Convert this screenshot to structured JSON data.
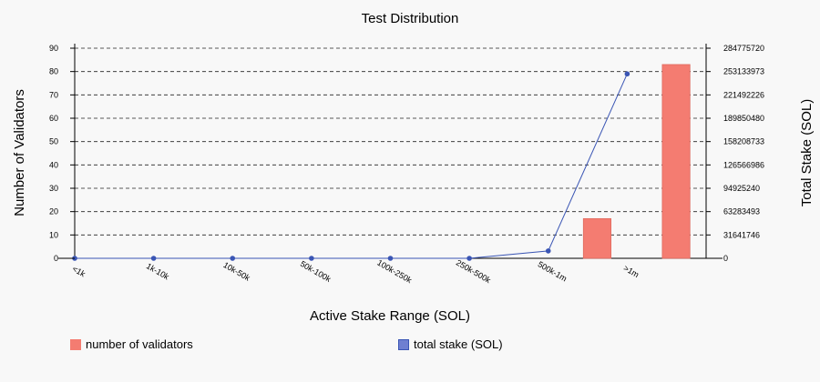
{
  "chart_data": {
    "type": "bar",
    "title": "Test Distribution",
    "xlabel": "Active Stake Range (SOL)",
    "ylabel": "Number of Validators",
    "y2label": "Total Stake (SOL)",
    "categories": [
      "<1k",
      "1k-10k",
      "10k-50k",
      "50k-100k",
      "100k-250k",
      "250k-500k",
      "500k-1m",
      ">1m"
    ],
    "ylim": [
      0,
      90
    ],
    "y_ticks": [
      "0",
      "10",
      "20",
      "30",
      "40",
      "50",
      "60",
      "70",
      "80",
      "90"
    ],
    "y2lim": [
      0,
      284775720
    ],
    "y2_ticks": [
      "0",
      "31641746",
      "63283493",
      "94925240",
      "126566986",
      "158208733",
      "189850480",
      "221492226",
      "253133973",
      "284775720"
    ],
    "grid": true,
    "legend_position": "bottom",
    "series": [
      {
        "name": "number of validators",
        "kind": "bar",
        "axis": "left",
        "color": "#f47c71",
        "values": [
          0,
          0,
          0,
          0,
          0,
          0,
          17,
          83
        ]
      },
      {
        "name": "total stake (SOL)",
        "kind": "line",
        "axis": "right",
        "color": "#3a55b4",
        "values": [
          0,
          0,
          0,
          0,
          0,
          0,
          10000000,
          250000000
        ]
      }
    ]
  }
}
